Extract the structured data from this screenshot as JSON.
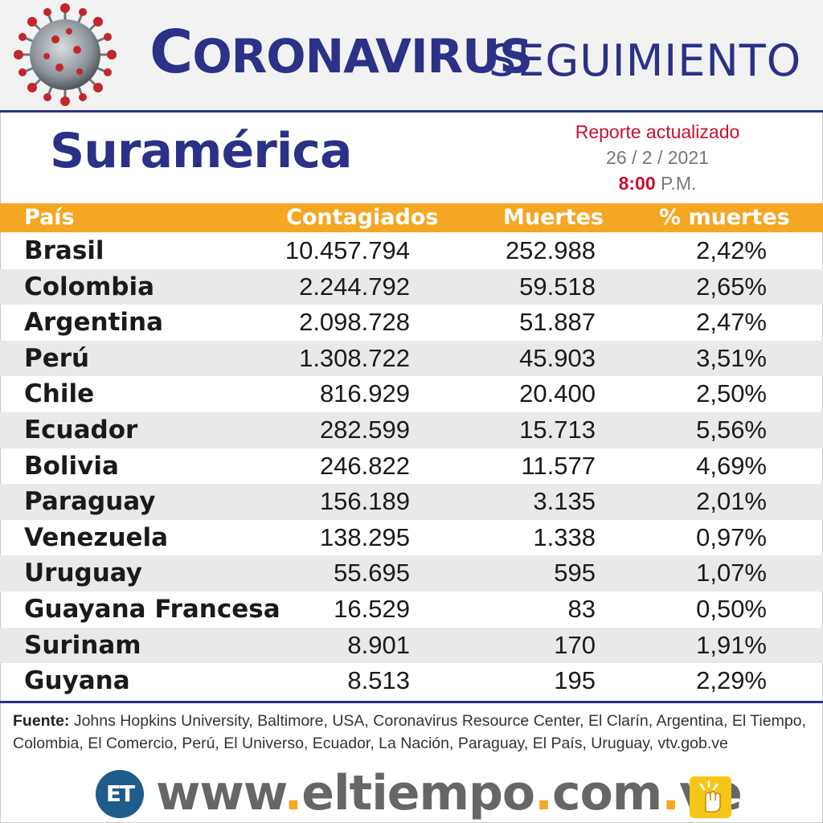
{
  "header": {
    "title_first_letter": "C",
    "title_rest": "ORONAVIRUS",
    "title_sub": "SEGUIMIENTO"
  },
  "region": "Suramérica",
  "report": {
    "line1": "Reporte actualizado",
    "date": "26 / 2 / 2021",
    "time": "8:00",
    "ampm": "P.M."
  },
  "table": {
    "headers": [
      "País",
      "Contagiados",
      "Muertes",
      "% muertes"
    ],
    "rows": [
      [
        "Brasil",
        "10.457.794",
        "252.988",
        "2,42%"
      ],
      [
        "Colombia",
        "2.244.792",
        "59.518",
        "2,65%"
      ],
      [
        "Argentina",
        "2.098.728",
        "51.887",
        "2,47%"
      ],
      [
        "Perú",
        "1.308.722",
        "45.903",
        "3,51%"
      ],
      [
        "Chile",
        "816.929",
        "20.400",
        "2,50%"
      ],
      [
        "Ecuador",
        "282.599",
        "15.713",
        "5,56%"
      ],
      [
        "Bolivia",
        "246.822",
        "11.577",
        "4,69%"
      ],
      [
        "Paraguay",
        "156.189",
        "3.135",
        "2,01%"
      ],
      [
        "Venezuela",
        "138.295",
        "1.338",
        "0,97%"
      ],
      [
        "Uruguay",
        "55.695",
        "595",
        "1,07%"
      ],
      [
        "Guayana Francesa",
        "16.529",
        "83",
        "0,50%"
      ],
      [
        "Surinam",
        "8.901",
        "170",
        "1,91%"
      ],
      [
        "Guyana",
        "8.513",
        "195",
        "2,29%"
      ]
    ]
  },
  "source": {
    "label": "Fuente:",
    "text": " Johns Hopkins University, Baltimore, USA, Coronavirus Resource Center,  El Clarín, Argentina, El Tiempo, Colombia, El Comercio, Perú, El Universo, Ecuador, La Nación, Paraguay, El País, Uruguay, vtv.gob.ve"
  },
  "footer": {
    "logo": "ET",
    "url_part1": "www",
    "url_part2": "eltiempo",
    "url_part3": "com",
    "url_part4": "ve",
    "dot": "."
  },
  "colors": {
    "brand_blue": "#2b3187",
    "header_orange": "#f5a623",
    "accent_red": "#c8102e"
  },
  "icons": [
    "coronavirus-icon",
    "hand-touch-icon"
  ]
}
